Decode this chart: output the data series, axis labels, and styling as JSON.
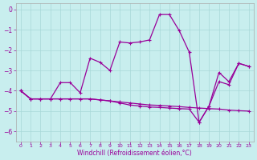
{
  "xlabel": "Windchill (Refroidissement éolien,°C)",
  "bg_color": "#c8eeee",
  "grid_color": "#a8d8d8",
  "line_color": "#990099",
  "xlim": [
    -0.5,
    23.5
  ],
  "ylim": [
    -6.5,
    0.3
  ],
  "yticks": [
    0,
    -1,
    -2,
    -3,
    -4,
    -5,
    -6
  ],
  "xticks": [
    0,
    1,
    2,
    3,
    4,
    5,
    6,
    7,
    8,
    9,
    10,
    11,
    12,
    13,
    14,
    15,
    16,
    17,
    18,
    19,
    20,
    21,
    22,
    23
  ],
  "line1_x": [
    0,
    1,
    2,
    3,
    4,
    5,
    6,
    7,
    8,
    9,
    10,
    11,
    12,
    13,
    14,
    15,
    16,
    17,
    18,
    19,
    20,
    21,
    22,
    23
  ],
  "line1_y": [
    -4.0,
    -4.4,
    -4.4,
    -4.4,
    -4.4,
    -4.4,
    -4.4,
    -4.4,
    -4.45,
    -4.5,
    -4.55,
    -4.6,
    -4.65,
    -4.7,
    -4.72,
    -4.75,
    -4.78,
    -4.82,
    -4.85,
    -4.88,
    -4.9,
    -4.95,
    -4.98,
    -5.0
  ],
  "line2_x": [
    0,
    1,
    2,
    3,
    4,
    5,
    6,
    7,
    8,
    9,
    10,
    11,
    12,
    13,
    14,
    15,
    16,
    17,
    18,
    19,
    20,
    21,
    22,
    23
  ],
  "line2_y": [
    -4.0,
    -4.4,
    -4.4,
    -4.4,
    -4.4,
    -4.4,
    -4.4,
    -4.4,
    -4.45,
    -4.5,
    -4.6,
    -4.7,
    -4.75,
    -4.8,
    -4.82,
    -4.85,
    -4.88,
    -4.9,
    -5.55,
    -4.75,
    -3.55,
    -3.7,
    -2.65,
    -2.8
  ],
  "line3_x": [
    0,
    1,
    2,
    3,
    4,
    5,
    6,
    7,
    8,
    9,
    10,
    11,
    12,
    13,
    14,
    15,
    16,
    17,
    18,
    19,
    20,
    21,
    22,
    23
  ],
  "line3_y": [
    -4.0,
    -4.4,
    -4.4,
    -4.4,
    -3.6,
    -3.6,
    -4.1,
    -2.4,
    -2.6,
    -3.0,
    -1.6,
    -1.65,
    -1.6,
    -1.5,
    -0.25,
    -0.25,
    -1.05,
    -2.1,
    -5.55,
    -4.75,
    -3.1,
    -3.55,
    -2.65,
    -2.8
  ]
}
